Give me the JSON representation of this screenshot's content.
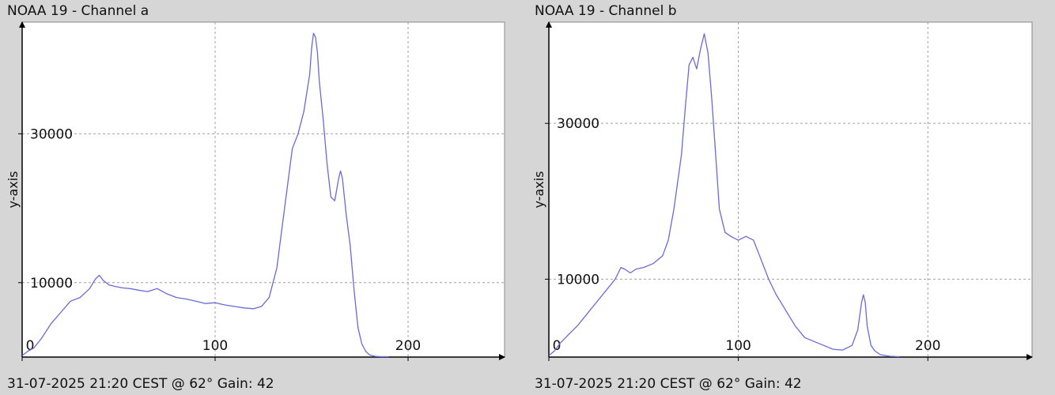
{
  "colors": {
    "background": "#d6d6d6",
    "plot_bg": "#ffffff",
    "series": "#6a6ad8",
    "grid": "#a0a0a0",
    "axis": "#000000"
  },
  "chart_data": [
    {
      "type": "line",
      "title": "NOAA 19 - Channel a",
      "footer": "31-07-2025 21:20 CEST @ 62° Gain: 42",
      "xlabel": "",
      "ylabel": "y-axis",
      "xlim": [
        0,
        250
      ],
      "ylim": [
        0,
        45000
      ],
      "xticks": [
        0,
        100,
        200
      ],
      "yticks": [
        10000,
        30000
      ],
      "ytick_labels": [
        "10000",
        "30000"
      ],
      "xtick_labels": [
        "0",
        "100",
        "200"
      ],
      "grid": true,
      "series": [
        {
          "x": [
            0,
            3,
            6,
            10,
            15,
            20,
            25,
            30,
            35,
            38,
            40,
            42,
            45,
            48,
            52,
            56,
            60,
            65,
            70,
            75,
            80,
            85,
            90,
            95,
            100,
            105,
            110,
            115,
            120,
            124,
            128,
            132,
            136,
            140,
            143,
            146,
            149,
            150,
            151,
            152,
            153,
            154,
            156,
            158,
            160,
            162,
            164,
            165,
            166,
            168,
            170,
            172,
            174,
            176,
            178,
            180,
            183,
            186,
            190
          ],
          "y": [
            200,
            800,
            1200,
            2500,
            4500,
            6000,
            7500,
            8000,
            9200,
            10500,
            11000,
            10300,
            9700,
            9500,
            9300,
            9200,
            9000,
            8800,
            9200,
            8500,
            8000,
            7800,
            7500,
            7200,
            7300,
            7000,
            6800,
            6600,
            6500,
            6800,
            8000,
            12000,
            20000,
            28000,
            30000,
            33000,
            38000,
            41500,
            43500,
            43000,
            41000,
            37000,
            32000,
            26000,
            21500,
            21000,
            24000,
            25000,
            24000,
            19000,
            15000,
            9000,
            4000,
            1800,
            800,
            300,
            100,
            50,
            50
          ]
        }
      ]
    },
    {
      "type": "line",
      "title": "NOAA 19 - Channel b",
      "footer": "31-07-2025 21:20 CEST @ 62° Gain: 42",
      "xlabel": "",
      "ylabel": "y-axis",
      "xlim": [
        0,
        255
      ],
      "ylim": [
        0,
        43000
      ],
      "xticks": [
        0,
        100,
        200
      ],
      "yticks": [
        10000,
        30000
      ],
      "ytick_labels": [
        "10000",
        "30000"
      ],
      "xtick_labels": [
        "0",
        "100",
        "200"
      ],
      "grid": true,
      "series": [
        {
          "x": [
            0,
            3,
            6,
            10,
            15,
            20,
            25,
            30,
            35,
            38,
            40,
            43,
            46,
            50,
            55,
            60,
            63,
            66,
            70,
            72,
            74,
            76,
            78,
            80,
            82,
            84,
            86,
            88,
            90,
            93,
            96,
            100,
            104,
            108,
            112,
            116,
            120,
            125,
            130,
            135,
            140,
            145,
            150,
            155,
            160,
            163,
            165,
            166,
            167,
            168,
            170,
            172,
            175,
            180,
            185
          ],
          "y": [
            200,
            800,
            1800,
            2800,
            4000,
            5500,
            7000,
            8500,
            10000,
            11500,
            11300,
            10800,
            11300,
            11500,
            12000,
            13000,
            15000,
            19000,
            26000,
            32000,
            37500,
            38500,
            37000,
            39500,
            41500,
            39000,
            33000,
            26000,
            19000,
            16000,
            15500,
            15000,
            15500,
            15000,
            12500,
            10000,
            8000,
            6000,
            4000,
            2500,
            2000,
            1500,
            1000,
            900,
            1500,
            3500,
            7000,
            8000,
            7000,
            4000,
            1500,
            800,
            300,
            100,
            50
          ]
        }
      ]
    }
  ]
}
